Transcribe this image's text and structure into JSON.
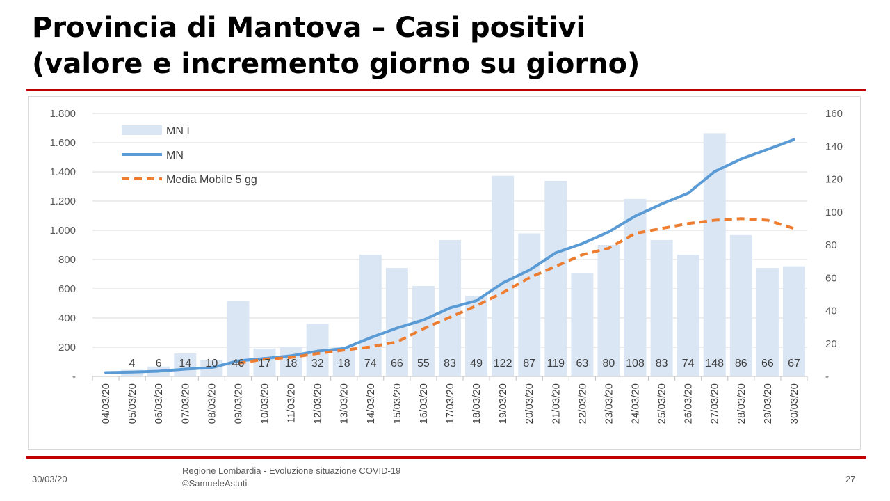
{
  "slide": {
    "title_line1": "Provincia di Mantova – Casi positivi",
    "title_line2": "(valore e incremento giorno su giorno)",
    "footer_date": "30/03/20",
    "footer_source_line1": "Regione Lombardia - Evoluzione situazione COVID-19",
    "footer_source_line2": "©SamueleAstuti",
    "page_number": "27"
  },
  "colors": {
    "rule": "#c00000",
    "bars": "#dae6f4",
    "line": "#5b9bd5",
    "moving_avg": "#ed7d31",
    "grid": "#d9d9d9"
  },
  "chart_data": {
    "type": "bar",
    "categories": [
      "04/03/20",
      "05/03/20",
      "06/03/20",
      "07/03/20",
      "08/03/20",
      "09/03/20",
      "10/03/20",
      "11/03/20",
      "12/03/20",
      "13/03/20",
      "14/03/20",
      "15/03/20",
      "16/03/20",
      "17/03/20",
      "18/03/20",
      "19/03/20",
      "20/03/20",
      "21/03/20",
      "22/03/20",
      "23/03/20",
      "24/03/20",
      "25/03/20",
      "26/03/20",
      "27/03/20",
      "28/03/20",
      "29/03/20",
      "30/03/20"
    ],
    "left_axis": {
      "ylim": [
        0,
        1800
      ],
      "ticks": [
        0,
        200,
        400,
        600,
        800,
        1000,
        1200,
        1400,
        1600,
        1800
      ],
      "tick_labels": [
        "-",
        "200",
        "400",
        "600",
        "800",
        "1.000",
        "1.200",
        "1.400",
        "1.600",
        "1.800"
      ]
    },
    "right_axis": {
      "ylim": [
        0,
        160
      ],
      "ticks": [
        0,
        20,
        40,
        60,
        80,
        100,
        120,
        140,
        160
      ],
      "tick_labels": [
        "-",
        "20",
        "40",
        "60",
        "80",
        "100",
        "120",
        "140",
        "160"
      ]
    },
    "grid": true,
    "legend_position": "top-left",
    "series": [
      {
        "name": "MN I",
        "kind": "bar",
        "axis": "right",
        "values": [
          null,
          4,
          6,
          14,
          10,
          46,
          17,
          18,
          32,
          18,
          74,
          66,
          55,
          83,
          49,
          122,
          87,
          119,
          63,
          80,
          108,
          83,
          74,
          148,
          86,
          66,
          67
        ],
        "data_labels": [
          "",
          "4",
          "6",
          "14",
          "10",
          "46",
          "17",
          "18",
          "32",
          "18",
          "74",
          "66",
          "55",
          "83",
          "49",
          "122",
          "87",
          "119",
          "63",
          "80",
          "108",
          "83",
          "74",
          "148",
          "86",
          "66",
          "67"
        ]
      },
      {
        "name": "MN",
        "kind": "line",
        "axis": "left",
        "values": [
          26,
          30,
          36,
          50,
          60,
          106,
          123,
          141,
          173,
          191,
          265,
          331,
          386,
          469,
          518,
          640,
          727,
          846,
          909,
          989,
          1097,
          1180,
          1254,
          1402,
          1488,
          1554,
          1621
        ]
      },
      {
        "name": "Media Mobile 5 gg",
        "kind": "dashed-line",
        "axis": "right",
        "values": [
          null,
          null,
          null,
          null,
          null,
          8,
          10.5,
          11.5,
          14,
          16,
          18,
          21,
          29,
          36,
          43,
          51,
          60,
          67,
          74,
          78,
          87,
          90,
          93,
          95,
          96,
          95,
          90
        ]
      }
    ]
  }
}
